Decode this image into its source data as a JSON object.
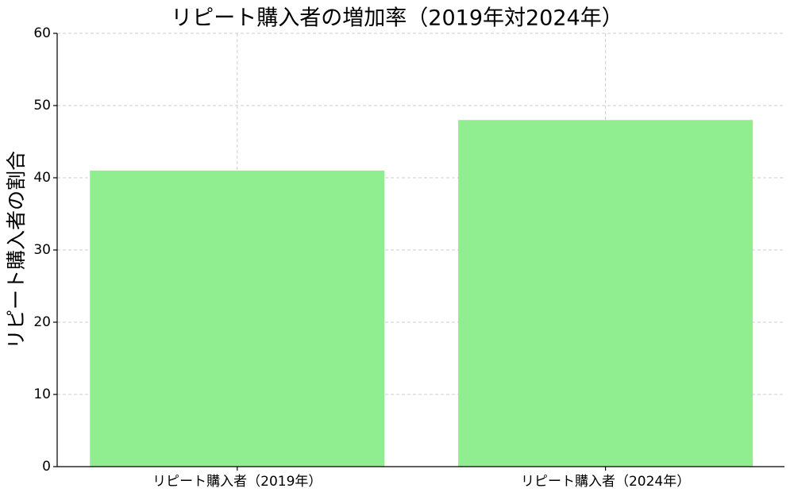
{
  "chart_data": {
    "type": "bar",
    "title": "リピート購入者の増加率（2019年対2024年）",
    "y_label": "リピート購入者の割合",
    "categories": [
      "リピート購入者（2019年）",
      "リピート購入者（2024年）"
    ],
    "values": [
      41,
      48
    ],
    "color": "#90ee90",
    "ylim": [
      0,
      60
    ],
    "yticks": [
      0,
      10,
      20,
      30,
      40,
      50,
      60
    ],
    "grid": true
  }
}
